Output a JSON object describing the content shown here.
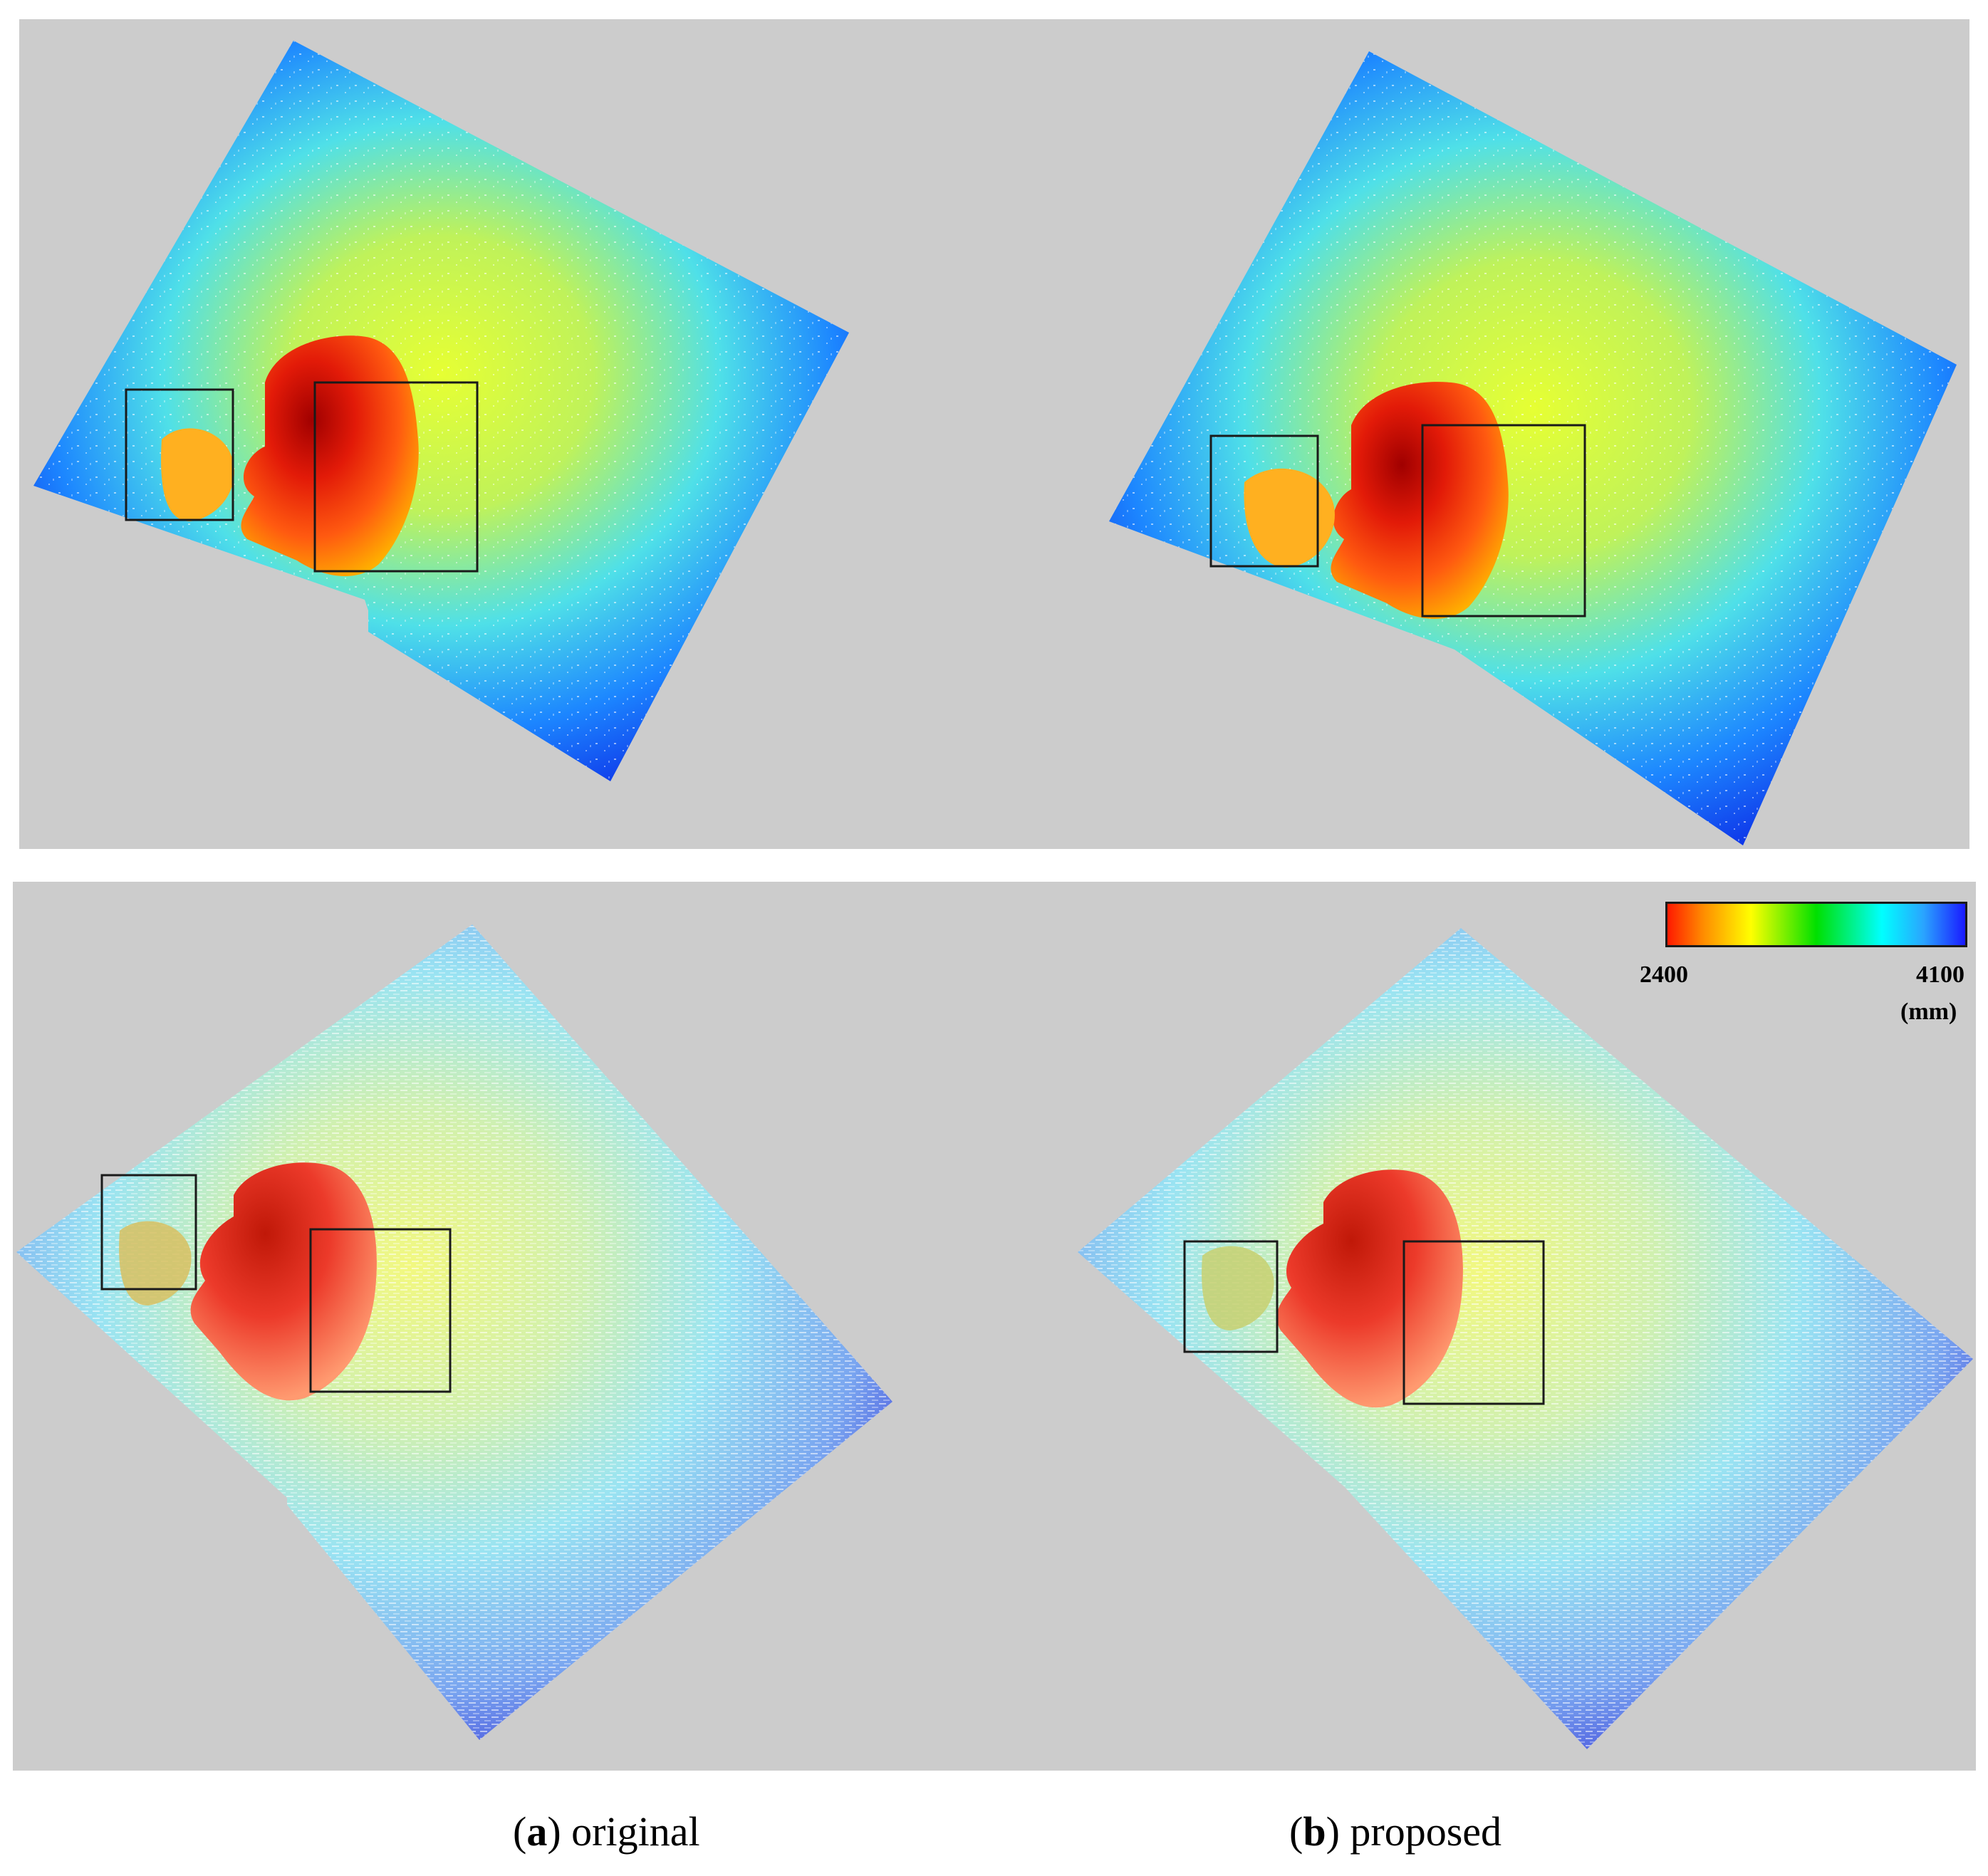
{
  "colorbar": {
    "min_label": "2400",
    "max_label": "4100",
    "unit_label": "(mm)",
    "colors": [
      "#ff1a00",
      "#ffff00",
      "#00e000",
      "#00ffff",
      "#1a1aff"
    ]
  },
  "captions": {
    "a_letter": "a",
    "a_text": "original",
    "b_letter": "b",
    "b_text": "proposed"
  },
  "background_color": "#cccccc"
}
